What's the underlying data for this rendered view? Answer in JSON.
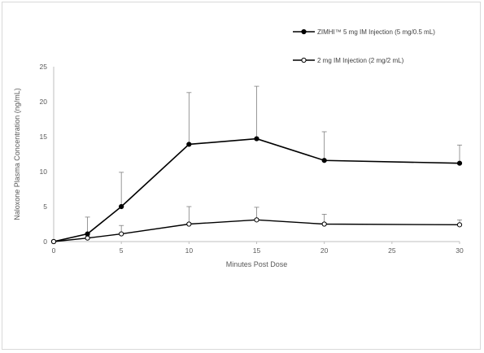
{
  "chart_data": {
    "type": "line",
    "title": "",
    "xlabel": "Minutes Post Dose",
    "ylabel": "Naloxone Plasma Concentration (ng/mL)",
    "xlim": [
      0,
      30
    ],
    "ylim": [
      0,
      25
    ],
    "xticks": [
      "0",
      "5",
      "10",
      "15",
      "20",
      "25",
      "30"
    ],
    "yticks": [
      "0",
      "5",
      "10",
      "15",
      "20",
      "25"
    ],
    "grid": false,
    "legend_position": "top-right",
    "x": [
      0,
      2.5,
      5,
      10,
      15,
      20,
      30
    ],
    "series": [
      {
        "name": "ZIMHI™ 5 mg IM Injection (5 mg/0.5 mL)",
        "marker": "filled-circle",
        "color": "#000000",
        "values": [
          0,
          1.1,
          5.0,
          13.9,
          14.7,
          11.6,
          11.2
        ],
        "error_upper": [
          0,
          3.5,
          9.9,
          21.3,
          22.2,
          15.7,
          13.8
        ]
      },
      {
        "name": "2 mg IM Injection (2 mg/2 mL)",
        "marker": "open-circle",
        "color": "#000000",
        "values": [
          0,
          0.5,
          1.1,
          2.5,
          3.1,
          2.5,
          2.4
        ],
        "error_upper": [
          0,
          0.8,
          2.3,
          5.0,
          4.9,
          3.9,
          3.1
        ]
      }
    ]
  }
}
